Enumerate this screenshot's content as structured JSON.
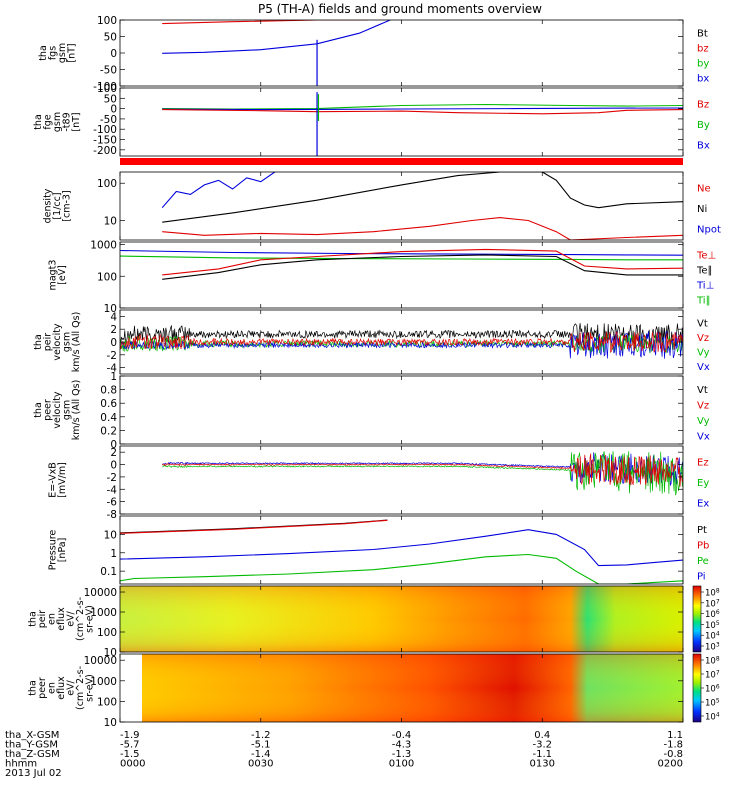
{
  "chart_data": {
    "title": "P5 (TH-A) fields and ground moments overview",
    "type": "line",
    "x_axis": {
      "tick_positions_hours": [
        0,
        0.5,
        1.0,
        1.5,
        2.0
      ],
      "rows": [
        {
          "label": "tha_X-GSM",
          "values": [
            "-1.9",
            "-1.2",
            "-0.4",
            "0.4",
            "1.1"
          ]
        },
        {
          "label": "tha_Y-GSM",
          "values": [
            "-5.7",
            "-5.1",
            "-4.3",
            "-3.2",
            "-1.8"
          ]
        },
        {
          "label": "tha_Z-GSM",
          "values": [
            "-1.5",
            "-1.4",
            "-1.3",
            "-1.1",
            "-0.8"
          ]
        },
        {
          "label": "hhmm",
          "values": [
            "0000",
            "0030",
            "0100",
            "0130",
            "0200"
          ]
        }
      ],
      "date": "2013 Jul 02"
    },
    "panels": [
      {
        "id": "fgs",
        "ylabel": [
          "tha",
          "fgs",
          "gsm",
          "[nT]"
        ],
        "ylim": [
          -100,
          100
        ],
        "scale": "linear",
        "ticks": [
          100,
          50,
          0,
          -50,
          -100
        ],
        "legend": [
          {
            "name": "Bt",
            "color": "#000000"
          },
          {
            "name": "bz",
            "color": "#e00000"
          },
          {
            "name": "by",
            "color": "#00bb00"
          },
          {
            "name": "bx",
            "color": "#0000dd"
          }
        ],
        "series": [
          {
            "name": "bz",
            "color": "#e00000",
            "x": [
              0.15,
              0.4,
              0.7,
              0.88
            ],
            "y": [
              89,
              95,
              101,
              104
            ]
          },
          {
            "name": "bx",
            "color": "#0000dd",
            "x": [
              0.15,
              0.3,
              0.5,
              0.7,
              0.85,
              0.96
            ],
            "y": [
              -1,
              2,
              10,
              28,
              60,
              100
            ]
          }
        ],
        "spikes": [
          {
            "x": 0.7,
            "ymin": -100,
            "ymax": 40,
            "color": "#0000dd"
          }
        ]
      },
      {
        "id": "fge",
        "ylabel": [
          "tha",
          "fge",
          "gsm",
          "-t89",
          "[nT]"
        ],
        "ylim": [
          -230,
          100
        ],
        "scale": "linear",
        "ticks": [
          100,
          50,
          0,
          -50,
          -100,
          -150,
          -200
        ],
        "legend": [
          {
            "name": "Bz",
            "color": "#e00000"
          },
          {
            "name": "By",
            "color": "#00bb00"
          },
          {
            "name": "Bx",
            "color": "#0000dd"
          }
        ],
        "series": [
          {
            "name": "By",
            "color": "#00bb00",
            "x": [
              0.15,
              0.4,
              0.7,
              1.0,
              1.3,
              1.6,
              1.8,
              2.0
            ],
            "y": [
              0,
              -2,
              0,
              15,
              20,
              15,
              12,
              15
            ]
          },
          {
            "name": "Bx",
            "color": "#0000dd",
            "x": [
              0.15,
              0.5,
              0.7,
              1.0,
              1.4,
              1.7,
              2.0
            ],
            "y": [
              -3,
              -5,
              -4,
              -2,
              0,
              2,
              3
            ]
          },
          {
            "name": "Bz",
            "color": "#e00000",
            "x": [
              0.15,
              0.5,
              0.7,
              1.0,
              1.2,
              1.5,
              1.7,
              1.8,
              2.0
            ],
            "y": [
              -5,
              -10,
              -15,
              -12,
              -20,
              -25,
              -20,
              -8,
              -5
            ]
          }
        ],
        "spikes": [
          {
            "x": 0.7,
            "ymin": -230,
            "ymax": 80,
            "color": "#0000dd"
          },
          {
            "x": 0.705,
            "ymin": -60,
            "ymax": 70,
            "color": "#00bb00"
          }
        ]
      },
      {
        "id": "density",
        "ylabel": [
          "density",
          "[1/cc]",
          "[cm-3]"
        ],
        "ylim": [
          3,
          200
        ],
        "scale": "log",
        "ticks": [
          100,
          10
        ],
        "legend": [
          {
            "name": "Ne",
            "color": "#e00000"
          },
          {
            "name": "Ni",
            "color": "#000000"
          },
          {
            "name": "Npot",
            "color": "#0000dd"
          }
        ],
        "series": [
          {
            "name": "Npot",
            "color": "#0000dd",
            "x": [
              0.15,
              0.2,
              0.25,
              0.3,
              0.35,
              0.4,
              0.45,
              0.5,
              0.55
            ],
            "y": [
              22,
              60,
              50,
              90,
              120,
              70,
              140,
              110,
              200
            ]
          },
          {
            "name": "Ni",
            "color": "#000000",
            "x": [
              0.15,
              0.4,
              0.7,
              1.0,
              1.2,
              1.35,
              1.5,
              1.55,
              1.6,
              1.65,
              1.7,
              1.8,
              2.0
            ],
            "y": [
              9,
              16,
              35,
              90,
              160,
              200,
              200,
              120,
              40,
              26,
              22,
              28,
              32
            ]
          },
          {
            "name": "Ne",
            "color": "#e00000",
            "x": [
              0.15,
              0.3,
              0.5,
              0.7,
              0.9,
              1.1,
              1.25,
              1.35,
              1.45,
              1.55,
              1.6,
              1.8,
              2.0
            ],
            "y": [
              5,
              4,
              4.5,
              4.2,
              5,
              7,
              10,
              12,
              10,
              5,
              3,
              3.5,
              4
            ]
          }
        ],
        "band": {
          "color": "#ff0000",
          "note": "red bar above panel"
        }
      },
      {
        "id": "temperature",
        "ylabel": [
          "magt3",
          "[eV]"
        ],
        "ylim": [
          10,
          1200
        ],
        "scale": "log",
        "ticks": [
          1000,
          100,
          10
        ],
        "legend": [
          {
            "name": "Te⊥",
            "color": "#e00000"
          },
          {
            "name": "Te∥",
            "color": "#000000"
          },
          {
            "name": "Ti⊥",
            "color": "#0000dd"
          },
          {
            "name": "Ti∥",
            "color": "#00bb00"
          }
        ],
        "series": [
          {
            "name": "Ti⊥",
            "color": "#0000dd",
            "x": [
              0.0,
              0.4,
              0.8,
              1.2,
              1.6,
              1.8,
              2.0
            ],
            "y": [
              650,
              560,
              520,
              500,
              480,
              470,
              460
            ]
          },
          {
            "name": "Ti∥",
            "color": "#00bb00",
            "x": [
              0.0,
              0.4,
              0.8,
              1.2,
              1.6,
              1.8,
              2.0
            ],
            "y": [
              430,
              380,
              360,
              350,
              340,
              330,
              330
            ]
          },
          {
            "name": "Te⊥",
            "color": "#e00000",
            "x": [
              0.15,
              0.35,
              0.5,
              0.7,
              1.0,
              1.3,
              1.55,
              1.65,
              1.8,
              2.0
            ],
            "y": [
              110,
              170,
              330,
              420,
              600,
              700,
              620,
              210,
              170,
              180
            ]
          },
          {
            "name": "Te∥",
            "color": "#000000",
            "x": [
              0.15,
              0.35,
              0.5,
              0.7,
              1.0,
              1.3,
              1.55,
              1.65,
              1.8,
              2.0
            ],
            "y": [
              80,
              130,
              230,
              330,
              420,
              470,
              420,
              150,
              110,
              110
            ]
          }
        ]
      },
      {
        "id": "velocity_peir",
        "ylabel": [
          "tha",
          "peir",
          "velocity",
          "gsm",
          "km/s (All Qs)"
        ],
        "ylim": [
          -5,
          5
        ],
        "scale": "linear",
        "ticks": [
          4,
          2,
          0,
          -2,
          -4
        ],
        "legend": [
          {
            "name": "Vt",
            "color": "#000000"
          },
          {
            "name": "Vz",
            "color": "#e00000"
          },
          {
            "name": "Vy",
            "color": "#00bb00"
          },
          {
            "name": "Vx",
            "color": "#0000dd"
          }
        ],
        "noise": [
          {
            "name": "Vt",
            "color": "#000000",
            "center": 1.2,
            "amp": [
              1.4,
              0.6,
              1.8
            ]
          },
          {
            "name": "Vy",
            "color": "#00bb00",
            "center": -0.3,
            "amp": [
              1.2,
              0.5,
              1.5
            ]
          },
          {
            "name": "Vx",
            "color": "#0000dd",
            "center": -0.5,
            "amp": [
              0.6,
              0.4,
              2.2
            ]
          },
          {
            "name": "Vz",
            "color": "#e00000",
            "center": 0.0,
            "amp": [
              1.2,
              0.5,
              1.6
            ]
          }
        ]
      },
      {
        "id": "velocity_peer",
        "ylabel": [
          "tha",
          "peer",
          "velocity",
          "gsm",
          "km/s (All Qs)"
        ],
        "ylim": [
          0,
          1
        ],
        "scale": "linear",
        "ticks": [
          1.0,
          0.8,
          0.6,
          0.4,
          0.2,
          0.0
        ],
        "legend": [
          {
            "name": "Vt",
            "color": "#000000"
          },
          {
            "name": "Vz",
            "color": "#e00000"
          },
          {
            "name": "Vy",
            "color": "#00bb00"
          },
          {
            "name": "Vx",
            "color": "#0000dd"
          }
        ]
      },
      {
        "id": "efield",
        "ylabel": [
          "E=-VxB",
          "[mV/m]"
        ],
        "ylim": [
          -8,
          3
        ],
        "scale": "linear",
        "ticks": [
          2,
          0,
          -2,
          -4,
          -6,
          -8
        ],
        "legend": [
          {
            "name": "Ez",
            "color": "#e00000"
          },
          {
            "name": "Ey",
            "color": "#00bb00"
          },
          {
            "name": "Ex",
            "color": "#0000dd"
          }
        ],
        "noise": [
          {
            "name": "Ex",
            "color": "#0000dd",
            "center": 0.2,
            "amp": [
              0.15,
              0.1,
              2.5
            ]
          },
          {
            "name": "Ey",
            "color": "#00bb00",
            "center": -0.3,
            "amp": [
              0.15,
              0.1,
              3.5
            ]
          },
          {
            "name": "Ez",
            "color": "#e00000",
            "center": 0.0,
            "amp": [
              0.15,
              0.1,
              2.5
            ]
          }
        ]
      },
      {
        "id": "pressure",
        "ylabel": [
          "Pressure",
          "[nPa]"
        ],
        "ylim": [
          0.02,
          100
        ],
        "scale": "log",
        "ticks": [
          10.0,
          1.0,
          0.1
        ],
        "legend": [
          {
            "name": "Pt",
            "color": "#000000"
          },
          {
            "name": "Pb",
            "color": "#e00000"
          },
          {
            "name": "Pe",
            "color": "#00bb00"
          },
          {
            "name": "Pi",
            "color": "#0000dd"
          }
        ],
        "series": [
          {
            "name": "Pt",
            "color": "#000000",
            "x": [
              0.0,
              0.4,
              0.8,
              0.95
            ],
            "y": [
              12,
              20,
              40,
              60
            ]
          },
          {
            "name": "Pb",
            "color": "#e00000",
            "x": [
              0.0,
              0.4,
              0.8,
              0.95
            ],
            "y": [
              11.5,
              19,
              38,
              58
            ]
          },
          {
            "name": "Pi",
            "color": "#0000dd",
            "x": [
              0.0,
              0.3,
              0.6,
              0.9,
              1.1,
              1.3,
              1.45,
              1.55,
              1.65,
              1.7,
              1.8,
              1.9,
              2.0
            ],
            "y": [
              0.45,
              0.6,
              0.9,
              1.5,
              3,
              8,
              18,
              10,
              1.5,
              0.2,
              0.22,
              0.3,
              0.4
            ]
          },
          {
            "name": "Pe",
            "color": "#00bb00",
            "x": [
              0.0,
              0.05,
              0.3,
              0.6,
              0.9,
              1.1,
              1.3,
              1.45,
              1.55,
              1.62,
              1.7,
              1.8,
              2.0
            ],
            "y": [
              0.03,
              0.04,
              0.05,
              0.07,
              0.12,
              0.25,
              0.6,
              0.8,
              0.5,
              0.1,
              0.02,
              0.02,
              0.03
            ]
          }
        ]
      },
      {
        "id": "peir_eflux",
        "ylabel": [
          "tha",
          "peir",
          "en",
          "eflux",
          "eV/",
          "(cm^2-s-",
          "sr-eV)"
        ],
        "ylim": [
          10,
          20000
        ],
        "scale": "log",
        "ticks": [
          10000,
          1000,
          100,
          10
        ],
        "type": "heatmap",
        "colorbar": {
          "labels": [
            "10^8",
            "10^7",
            "10^6",
            "10^5",
            "10^4",
            "10^3"
          ]
        }
      },
      {
        "id": "peer_eflux",
        "ylabel": [
          "tha",
          "peer",
          "en",
          "eflux",
          "eV/",
          "(cm^2-s-",
          "sr-eV)"
        ],
        "ylim": [
          10,
          20000
        ],
        "scale": "log",
        "ticks": [
          10000,
          1000,
          100,
          10
        ],
        "type": "heatmap",
        "colorbar": {
          "labels": [
            "10^8",
            "10^7",
            "10^6",
            "10^5",
            "10^4"
          ]
        }
      }
    ]
  }
}
